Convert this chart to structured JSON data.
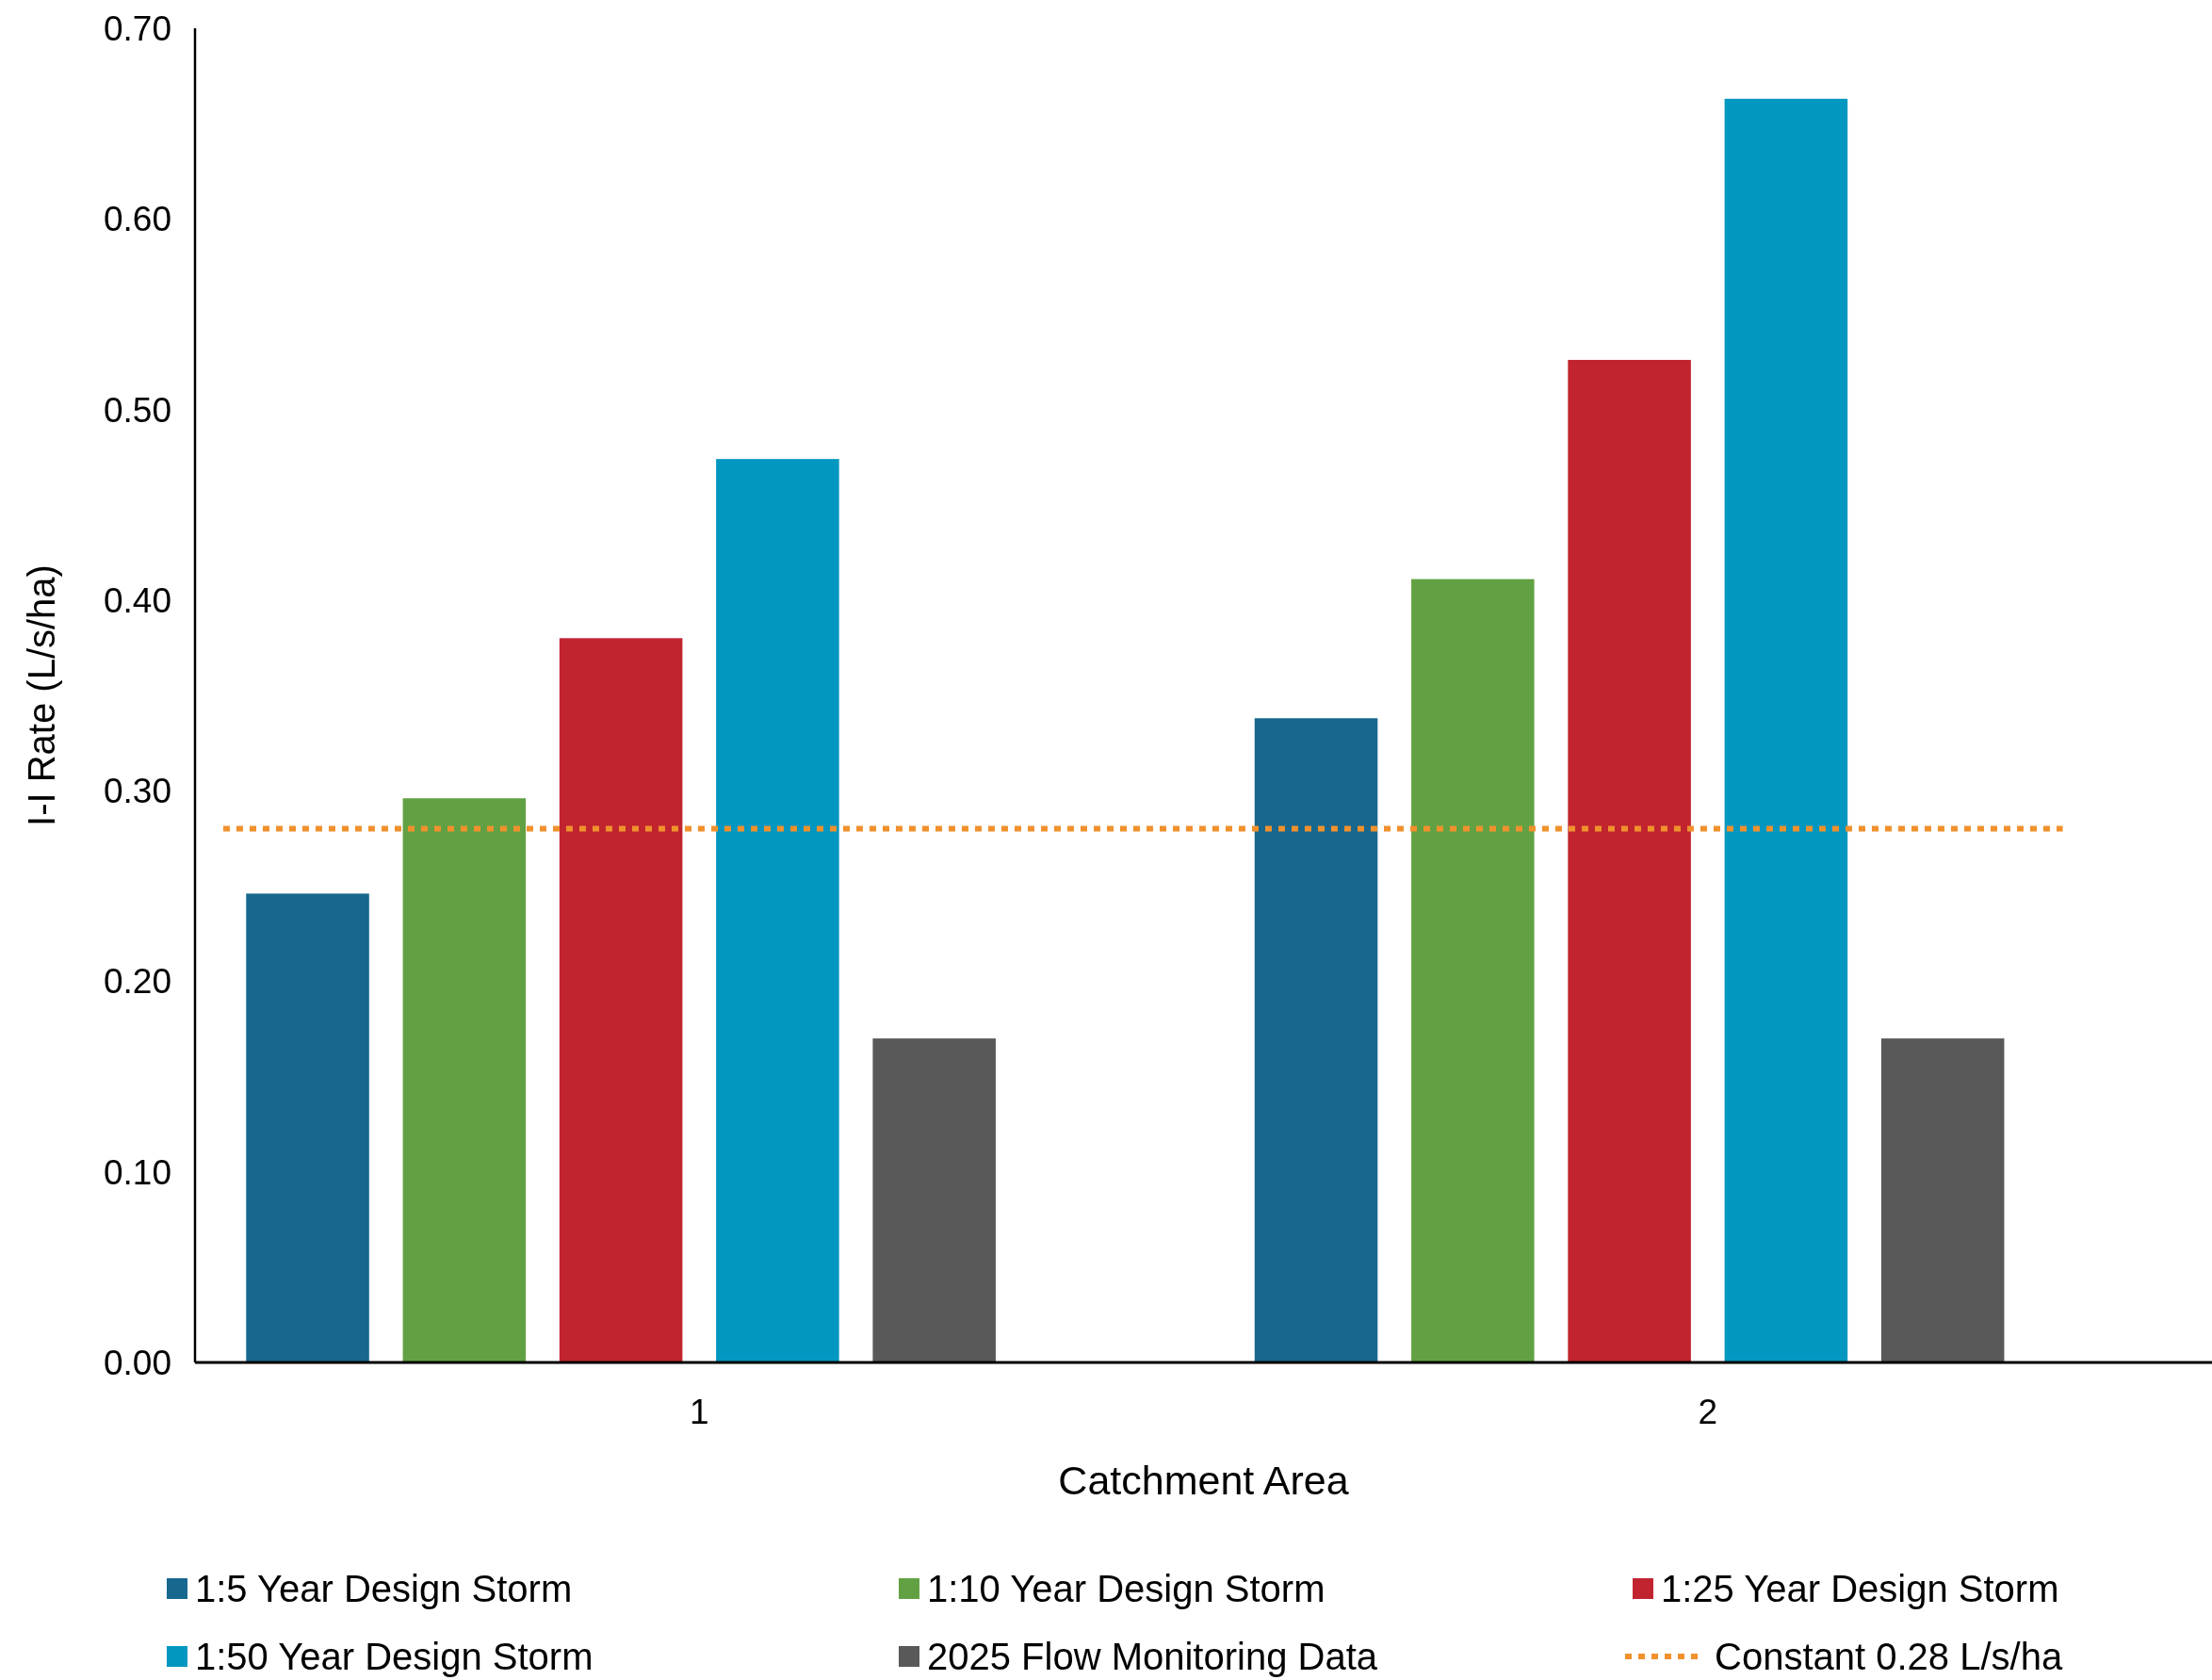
{
  "chart_data": {
    "type": "bar",
    "xlabel": "Catchment Area",
    "ylabel": "I-I Rate (L/s/ha)",
    "categories": [
      "1",
      "2"
    ],
    "series": [
      {
        "name": "1:5 Year Design Storm",
        "color": "#17678e",
        "values": [
          0.246,
          0.338
        ]
      },
      {
        "name": "1:10 Year Design Storm",
        "color": "#62a143",
        "values": [
          0.296,
          0.411
        ]
      },
      {
        "name": "1:25 Year Design Storm",
        "color": "#c1242f",
        "values": [
          0.38,
          0.526
        ]
      },
      {
        "name": "1:50 Year Design Storm",
        "color": "#0197c0",
        "values": [
          0.474,
          0.663
        ]
      },
      {
        "name": "2025 Flow Monitoring Data",
        "color": "#595959",
        "values": [
          0.17,
          0.17
        ]
      }
    ],
    "ref_lines": [
      {
        "axis": "y",
        "value": 0.28,
        "label": "Constant 0.28 L/s/ha",
        "color": "#f0912d",
        "line_style": "dotted"
      }
    ],
    "ylim": [
      0,
      0.7
    ],
    "yticks": [
      {
        "value": 0,
        "label": "0.00"
      },
      {
        "value": 0.1,
        "label": "0.10"
      },
      {
        "value": 0.2,
        "label": "0.20"
      },
      {
        "value": 0.3,
        "label": "0.30"
      },
      {
        "value": 0.4,
        "label": "0.40"
      },
      {
        "value": 0.5,
        "label": "0.50"
      },
      {
        "value": 0.6,
        "label": "0.60"
      },
      {
        "value": 0.7,
        "label": "0.70"
      }
    ],
    "grid": false,
    "legend": "bottom"
  }
}
